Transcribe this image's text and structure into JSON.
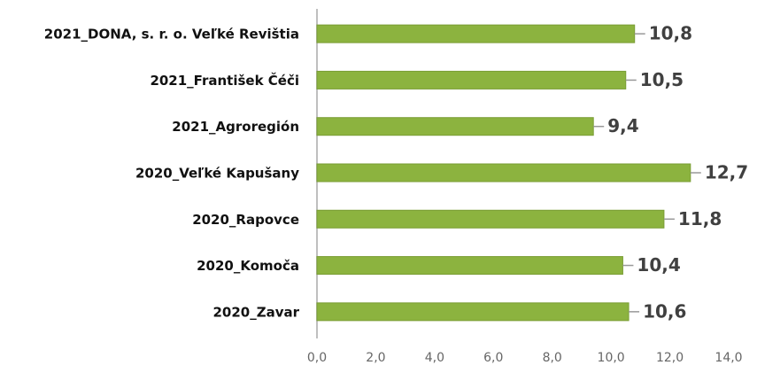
{
  "chart_data": {
    "type": "hbar",
    "categories": [
      "2021_DONA, s. r. o. Veľké Revištia",
      "2021_František Čéči",
      "2021_Agroregión",
      "2020_Veľké Kapušany",
      "2020_Rapovce",
      "2020_Komoča",
      "2020_Zavar"
    ],
    "values": [
      10.8,
      10.5,
      9.4,
      12.7,
      11.8,
      10.4,
      10.6
    ],
    "value_labels": [
      "10,8",
      "10,5",
      "9,4",
      "12,7",
      "11,8",
      "10,4",
      "10,6"
    ],
    "color": "#8cb33f",
    "xlim": [
      0,
      14
    ],
    "xticks": [
      {
        "value": 0,
        "label": "0,0"
      },
      {
        "value": 2,
        "label": "2,0"
      },
      {
        "value": 4,
        "label": "4,0"
      },
      {
        "value": 6,
        "label": "6,0"
      },
      {
        "value": 8,
        "label": "8,0"
      },
      {
        "value": 10,
        "label": "10,0"
      },
      {
        "value": 12,
        "label": "12,0"
      },
      {
        "value": 14,
        "label": "14,0"
      }
    ]
  }
}
